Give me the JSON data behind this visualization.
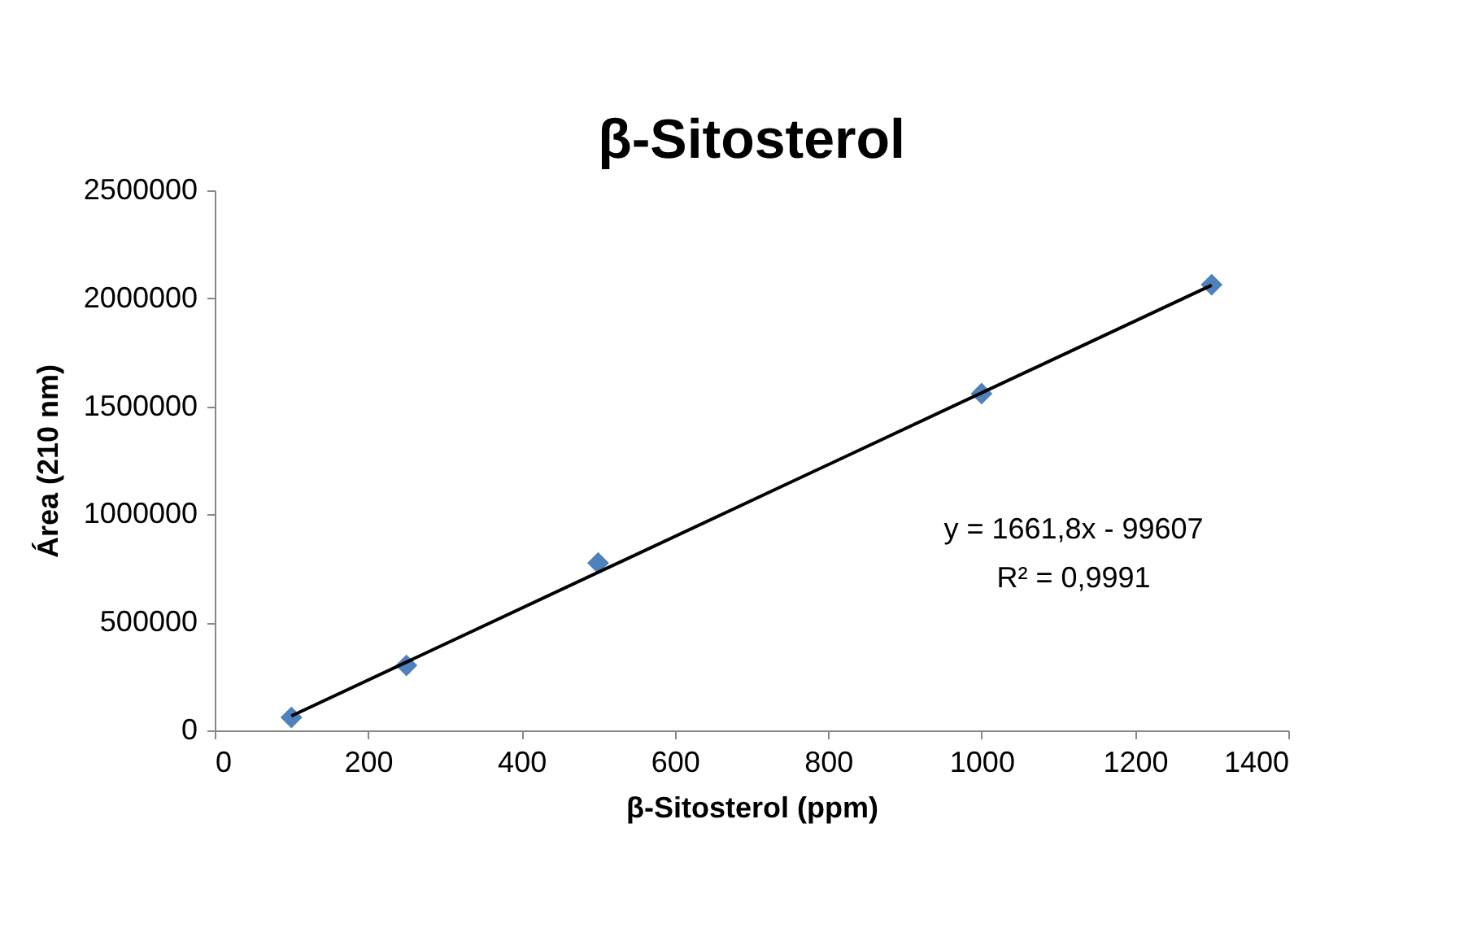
{
  "chart_data": {
    "type": "scatter",
    "title": "β-Sitosterol",
    "xlabel": "β-Sitosterol (ppm)",
    "ylabel": "Área  (210 nm)",
    "x": [
      100,
      250,
      500,
      1000,
      1300
    ],
    "series": [
      {
        "color": "#4f81bd",
        "marker": "diamond",
        "values": [
          60000,
          301000,
          775000,
          1559000,
          2063000
        ]
      },
      {
        "type": "line",
        "color": "#000000",
        "line_style": "solid",
        "marker": "none",
        "x": [
          100,
          1300
        ],
        "values": [
          67000,
          2061000
        ]
      }
    ],
    "xlim": [
      0,
      1400
    ],
    "xticks": [
      0,
      200,
      400,
      600,
      800,
      1000,
      1200,
      1400
    ],
    "ylim": [
      0,
      2500000
    ],
    "yticks": [
      0,
      500000,
      1000000,
      1500000,
      2000000,
      2500000
    ],
    "annotations": [
      "y = 1661,8x - 99607",
      "R² = 0,9991"
    ],
    "grid": false
  }
}
